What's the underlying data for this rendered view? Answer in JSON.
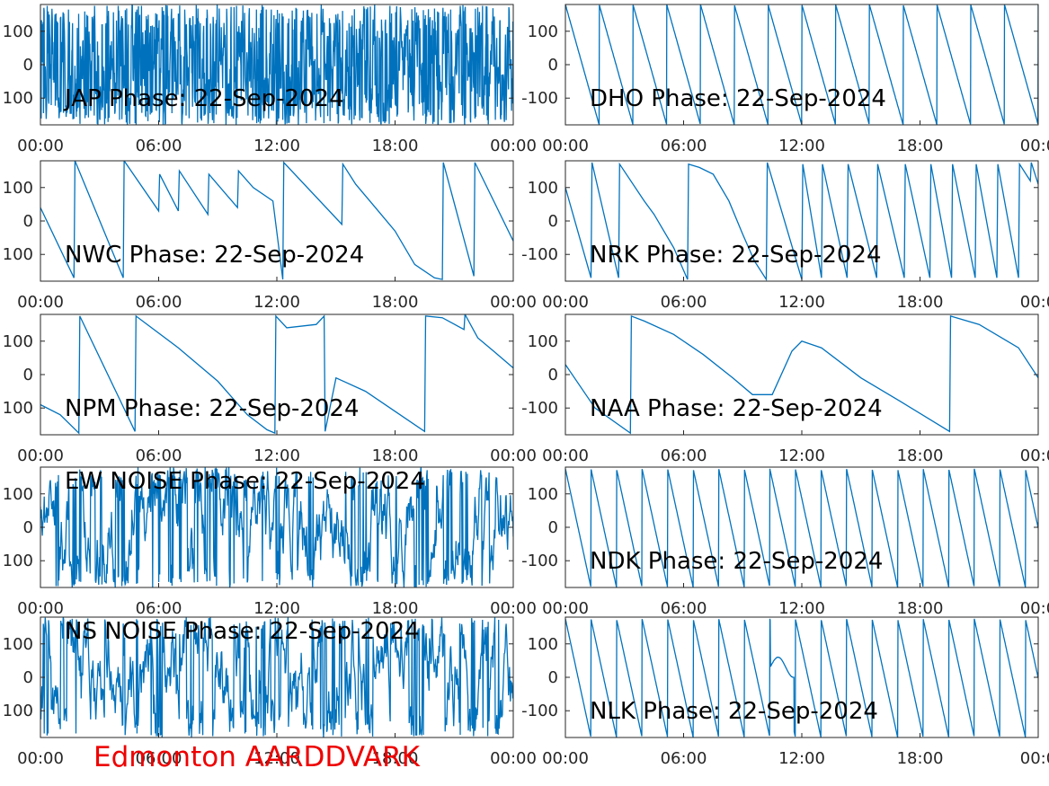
{
  "figure": {
    "caption": "Edmonton AARDDVARK",
    "caption_color": "#ee0000",
    "line_color": "#0072bd"
  },
  "chart_data": [
    {
      "type": "line",
      "title": "JAP Phase: 22-Sep-2024",
      "pattern": "noise_dense",
      "xlim": [
        0,
        24
      ],
      "ylim": [
        -180,
        180
      ],
      "x_ticks": [
        "00:00",
        "06:00",
        "12:00",
        "18:00",
        "00:00"
      ],
      "y_ticks": [
        "100",
        "0",
        "100"
      ],
      "series": [
        {
          "x": [],
          "y": []
        }
      ]
    },
    {
      "type": "line",
      "title": "DHO Phase: 22-Sep-2024",
      "pattern": "fast_wrap",
      "xlim": [
        0,
        24
      ],
      "ylim": [
        -180,
        180
      ],
      "x_ticks": [
        "00:00",
        "06:00",
        "12:00",
        "18:00",
        "00:0"
      ],
      "y_ticks": [
        "100",
        "0",
        "-100"
      ],
      "series": [
        {
          "x": [],
          "y": []
        }
      ]
    },
    {
      "type": "line",
      "title": "NWC Phase: 22-Sep-2024",
      "pattern": "segments",
      "xlim": [
        0,
        24
      ],
      "ylim": [
        -180,
        180
      ],
      "x_ticks": [
        "00:00",
        "06:00",
        "12:00",
        "18:00",
        "00:00"
      ],
      "y_ticks": [
        "100",
        "0",
        "100"
      ],
      "series": [
        {
          "x": [
            0,
            1.7,
            1.75,
            4.2,
            4.25,
            6.0,
            6.05,
            7.0,
            7.05,
            8.5,
            8.55,
            10.0,
            10.05,
            10.8,
            11.8,
            12.3,
            12.35,
            15.3,
            15.35,
            16.0,
            17.0,
            18.0,
            19.0,
            20.0,
            20.4,
            20.45,
            22.0,
            22.05,
            24.0
          ],
          "y": [
            40,
            -170,
            180,
            -170,
            180,
            30,
            140,
            30,
            150,
            20,
            140,
            40,
            150,
            100,
            60,
            -175,
            175,
            -10,
            170,
            110,
            40,
            -30,
            -130,
            -170,
            -175,
            175,
            -165,
            175,
            -60
          ]
        }
      ]
    },
    {
      "type": "line",
      "title": "NRK Phase: 22-Sep-2024",
      "pattern": "segments",
      "xlim": [
        0,
        24
      ],
      "ylim": [
        -180,
        180
      ],
      "x_ticks": [
        "00:00",
        "06:00",
        "12:00",
        "18:00",
        "00:0"
      ],
      "y_ticks": [
        "100",
        "0",
        "-100"
      ],
      "series": [
        {
          "x": [
            0,
            1.3,
            1.35,
            2.7,
            2.75,
            4.0,
            4.5,
            5.5,
            6.2,
            6.25,
            6.8,
            7.5,
            8.3,
            9.0,
            9.6,
            10.2,
            10.25,
            12.0,
            12.05,
            13.0,
            13.05,
            14.3,
            14.35,
            15.8,
            15.85,
            17.2,
            17.25,
            18.5,
            18.55,
            19.6,
            19.65,
            20.8,
            20.85,
            21.9,
            21.95,
            23.0,
            23.05,
            23.6,
            23.65,
            24.0
          ],
          "y": [
            100,
            -170,
            175,
            -170,
            170,
            60,
            20,
            -80,
            -175,
            170,
            160,
            140,
            60,
            -40,
            -120,
            -175,
            175,
            -175,
            170,
            -170,
            170,
            -170,
            170,
            -170,
            170,
            -170,
            170,
            -170,
            170,
            -170,
            170,
            -170,
            170,
            -170,
            170,
            -170,
            170,
            120,
            175,
            110
          ]
        }
      ]
    },
    {
      "type": "line",
      "title": "NPM Phase: 22-Sep-2024",
      "pattern": "segments",
      "xlim": [
        0,
        24
      ],
      "ylim": [
        -180,
        180
      ],
      "x_ticks": [
        "00:00",
        "06:00",
        "12:00",
        "18:00",
        "00:00"
      ],
      "y_ticks": [
        "100",
        "0",
        "100"
      ],
      "series": [
        {
          "x": [
            0,
            1.0,
            1.95,
            2.0,
            4.8,
            4.85,
            7.0,
            9.0,
            10.5,
            11.5,
            11.9,
            11.95,
            12.5,
            14.0,
            14.4,
            14.45,
            15.0,
            16.5,
            18.0,
            19.5,
            19.55,
            20.4,
            21.5,
            21.55,
            22.2,
            23.0,
            24.0
          ],
          "y": [
            -90,
            -120,
            -175,
            175,
            -170,
            175,
            80,
            -20,
            -120,
            -165,
            -175,
            175,
            140,
            150,
            175,
            -170,
            -10,
            -50,
            -110,
            -170,
            175,
            170,
            135,
            180,
            110,
            70,
            20
          ]
        }
      ]
    },
    {
      "type": "line",
      "title": "NAA Phase: 22-Sep-2024",
      "pattern": "segments",
      "xlim": [
        0,
        24
      ],
      "ylim": [
        -180,
        180
      ],
      "x_ticks": [
        "00:00",
        "06:00",
        "12:00",
        "18:00",
        "00:0"
      ],
      "y_ticks": [
        "100",
        "0",
        "-100"
      ],
      "series": [
        {
          "x": [
            0,
            1.5,
            3.3,
            3.35,
            4.0,
            5.5,
            7.0,
            8.5,
            9.5,
            10.5,
            11.5,
            12.0,
            13.0,
            15.0,
            17.0,
            19.5,
            19.55,
            21.0,
            23.0,
            24.0
          ],
          "y": [
            30,
            -100,
            -175,
            175,
            160,
            120,
            60,
            -10,
            -60,
            -60,
            70,
            100,
            80,
            -10,
            -80,
            -170,
            175,
            150,
            80,
            -10
          ]
        }
      ]
    },
    {
      "type": "line",
      "title": "EW NOISE Phase: 22-Sep-2024",
      "pattern": "noise",
      "xlim": [
        0,
        24
      ],
      "ylim": [
        -180,
        180
      ],
      "x_ticks": [
        "00:00",
        "06:00",
        "12:00",
        "18:00",
        "00:00"
      ],
      "y_ticks": [
        "100",
        "0",
        "100"
      ],
      "series": [
        {
          "x": [],
          "y": []
        }
      ]
    },
    {
      "type": "line",
      "title": "NDK Phase: 22-Sep-2024",
      "pattern": "sawtooth",
      "xlim": [
        0,
        24
      ],
      "ylim": [
        -180,
        180
      ],
      "x_ticks": [
        "00:00",
        "06:00",
        "12:00",
        "18:00",
        "00:0"
      ],
      "y_ticks": [
        "100",
        "0",
        "-100"
      ],
      "series": [
        {
          "x": [],
          "y": []
        }
      ]
    },
    {
      "type": "line",
      "title": "NS NOISE Phase: 22-Sep-2024",
      "pattern": "noise",
      "xlim": [
        0,
        24
      ],
      "ylim": [
        -180,
        180
      ],
      "x_ticks": [
        "00:00",
        "06:00",
        "12:00",
        "18:00",
        "00:00"
      ],
      "y_ticks": [
        "100",
        "0",
        "100"
      ],
      "series": [
        {
          "x": [],
          "y": []
        }
      ]
    },
    {
      "type": "line",
      "title": "NLK Phase: 22-Sep-2024",
      "pattern": "sawtooth",
      "xlim": [
        0,
        24
      ],
      "ylim": [
        -180,
        180
      ],
      "x_ticks": [
        "00:00",
        "06:00",
        "12:00",
        "18:00",
        "00:0"
      ],
      "y_ticks": [
        "100",
        "0",
        "-100"
      ],
      "series": [
        {
          "x": [],
          "y": []
        }
      ]
    }
  ]
}
